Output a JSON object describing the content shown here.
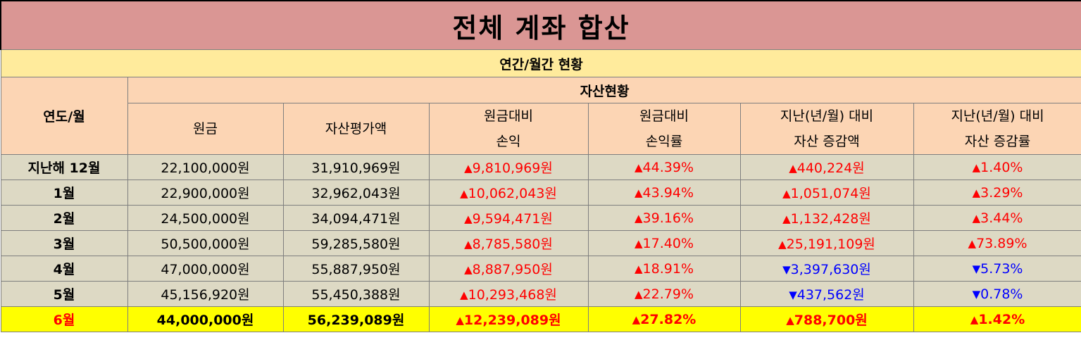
{
  "title": "전체 계좌 합산",
  "subtitle": "연간/월간 현황",
  "header": {
    "year_month": "연도/월",
    "group": "자산현황",
    "columns": [
      {
        "line1": "원금",
        "line2": ""
      },
      {
        "line1": "자산평가액",
        "line2": ""
      },
      {
        "line1": "원금대비",
        "line2": "손익"
      },
      {
        "line1": "원금대비",
        "line2": "손익률"
      },
      {
        "line1": "지난(년/월) 대비",
        "line2": "자산 증감액"
      },
      {
        "line1": "지난(년/월) 대비",
        "line2": "자산 증감률"
      }
    ]
  },
  "rows": [
    {
      "label": "지난해 12월",
      "principal": "22,100,000원",
      "valuation": "31,910,969원",
      "pnl_dir": "up",
      "pnl": "9,810,969원",
      "pnl_rate_dir": "up",
      "pnl_rate": "44.39%",
      "chg_dir": "up",
      "chg": "440,224원",
      "chg_rate_dir": "up",
      "chg_rate": "1.40%",
      "current": false
    },
    {
      "label": "1월",
      "principal": "22,900,000원",
      "valuation": "32,962,043원",
      "pnl_dir": "up",
      "pnl": "10,062,043원",
      "pnl_rate_dir": "up",
      "pnl_rate": "43.94%",
      "chg_dir": "up",
      "chg": "1,051,074원",
      "chg_rate_dir": "up",
      "chg_rate": "3.29%",
      "current": false
    },
    {
      "label": "2월",
      "principal": "24,500,000원",
      "valuation": "34,094,471원",
      "pnl_dir": "up",
      "pnl": "9,594,471원",
      "pnl_rate_dir": "up",
      "pnl_rate": "39.16%",
      "chg_dir": "up",
      "chg": "1,132,428원",
      "chg_rate_dir": "up",
      "chg_rate": "3.44%",
      "current": false
    },
    {
      "label": "3월",
      "principal": "50,500,000원",
      "valuation": "59,285,580원",
      "pnl_dir": "up",
      "pnl": "8,785,580원",
      "pnl_rate_dir": "up",
      "pnl_rate": "17.40%",
      "chg_dir": "up",
      "chg": "25,191,109원",
      "chg_rate_dir": "up",
      "chg_rate": "73.89%",
      "current": false
    },
    {
      "label": "4월",
      "principal": "47,000,000원",
      "valuation": "55,887,950원",
      "pnl_dir": "up",
      "pnl": "8,887,950원",
      "pnl_rate_dir": "up",
      "pnl_rate": "18.91%",
      "chg_dir": "down",
      "chg": "3,397,630원",
      "chg_rate_dir": "down",
      "chg_rate": "5.73%",
      "current": false
    },
    {
      "label": "5월",
      "principal": "45,156,920원",
      "valuation": "55,450,388원",
      "pnl_dir": "up",
      "pnl": "10,293,468원",
      "pnl_rate_dir": "up",
      "pnl_rate": "22.79%",
      "chg_dir": "down",
      "chg": "437,562원",
      "chg_rate_dir": "down",
      "chg_rate": "0.78%",
      "current": false
    },
    {
      "label": "6월",
      "principal": "44,000,000원",
      "valuation": "56,239,089원",
      "pnl_dir": "up",
      "pnl": "12,239,089원",
      "pnl_rate_dir": "up",
      "pnl_rate": "27.82%",
      "chg_dir": "up",
      "chg": "788,700원",
      "chg_rate_dir": "up",
      "chg_rate": "1.42%",
      "current": true
    }
  ],
  "icons": {
    "up": "triangle-up-icon",
    "down": "triangle-down-icon"
  },
  "colors": {
    "title_bg": "#da9694",
    "subtitle_bg": "#ffeb9c",
    "header_bg": "#fcd5b4",
    "row_bg": "#ddd9c4",
    "current_row_bg": "#ffff00",
    "up": "#ff0000",
    "down": "#0000ff"
  }
}
